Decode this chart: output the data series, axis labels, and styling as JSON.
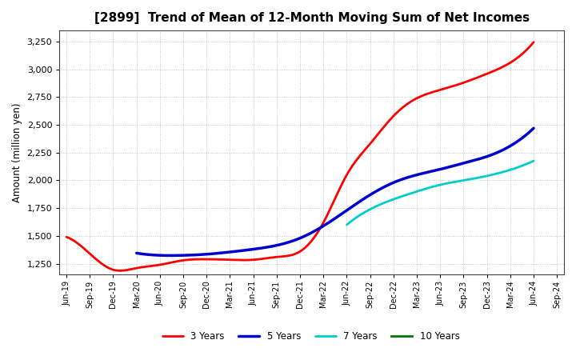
{
  "title": "[2899]  Trend of Mean of 12-Month Moving Sum of Net Incomes",
  "ylabel": "Amount (million yen)",
  "xlabel": "",
  "ylim": [
    1150,
    3350
  ],
  "yticks": [
    1250,
    1500,
    1750,
    2000,
    2250,
    2500,
    2750,
    3000,
    3250
  ],
  "background_color": "#ffffff",
  "grid_color": "#999999",
  "line_colors": {
    "3 Years": "#ff0000",
    "5 Years": "#0000cc",
    "7 Years": "#00cccc",
    "10 Years": "#007700"
  },
  "line_widths": {
    "3 Years": 2.0,
    "5 Years": 2.5,
    "7 Years": 2.0,
    "10 Years": 2.0
  },
  "x_labels": [
    "Jun-19",
    "Sep-19",
    "Dec-19",
    "Mar-20",
    "Jun-20",
    "Sep-20",
    "Dec-20",
    "Mar-21",
    "Jun-21",
    "Sep-21",
    "Dec-21",
    "Mar-22",
    "Jun-22",
    "Sep-22",
    "Dec-22",
    "Mar-23",
    "Jun-23",
    "Sep-23",
    "Dec-23",
    "Mar-24",
    "Jun-24",
    "Sep-24"
  ],
  "series": {
    "3 Years": [
      1490,
      1340,
      1195,
      1210,
      1240,
      1280,
      1290,
      1285,
      1285,
      1310,
      1360,
      1620,
      2050,
      2330,
      2580,
      2740,
      2815,
      2880,
      2960,
      3060,
      3245,
      null
    ],
    "5 Years": [
      null,
      null,
      null,
      1345,
      1325,
      1325,
      1335,
      1355,
      1380,
      1415,
      1480,
      1590,
      1730,
      1870,
      1980,
      2050,
      2100,
      2155,
      2215,
      2310,
      2470,
      null
    ],
    "7 Years": [
      null,
      null,
      null,
      null,
      null,
      null,
      null,
      null,
      null,
      null,
      null,
      null,
      1600,
      1740,
      1830,
      1900,
      1960,
      2000,
      2040,
      2095,
      2175,
      null
    ],
    "10 Years": [
      null,
      null,
      null,
      null,
      null,
      null,
      null,
      null,
      null,
      null,
      null,
      null,
      null,
      null,
      null,
      null,
      null,
      null,
      null,
      null,
      null,
      null
    ]
  }
}
